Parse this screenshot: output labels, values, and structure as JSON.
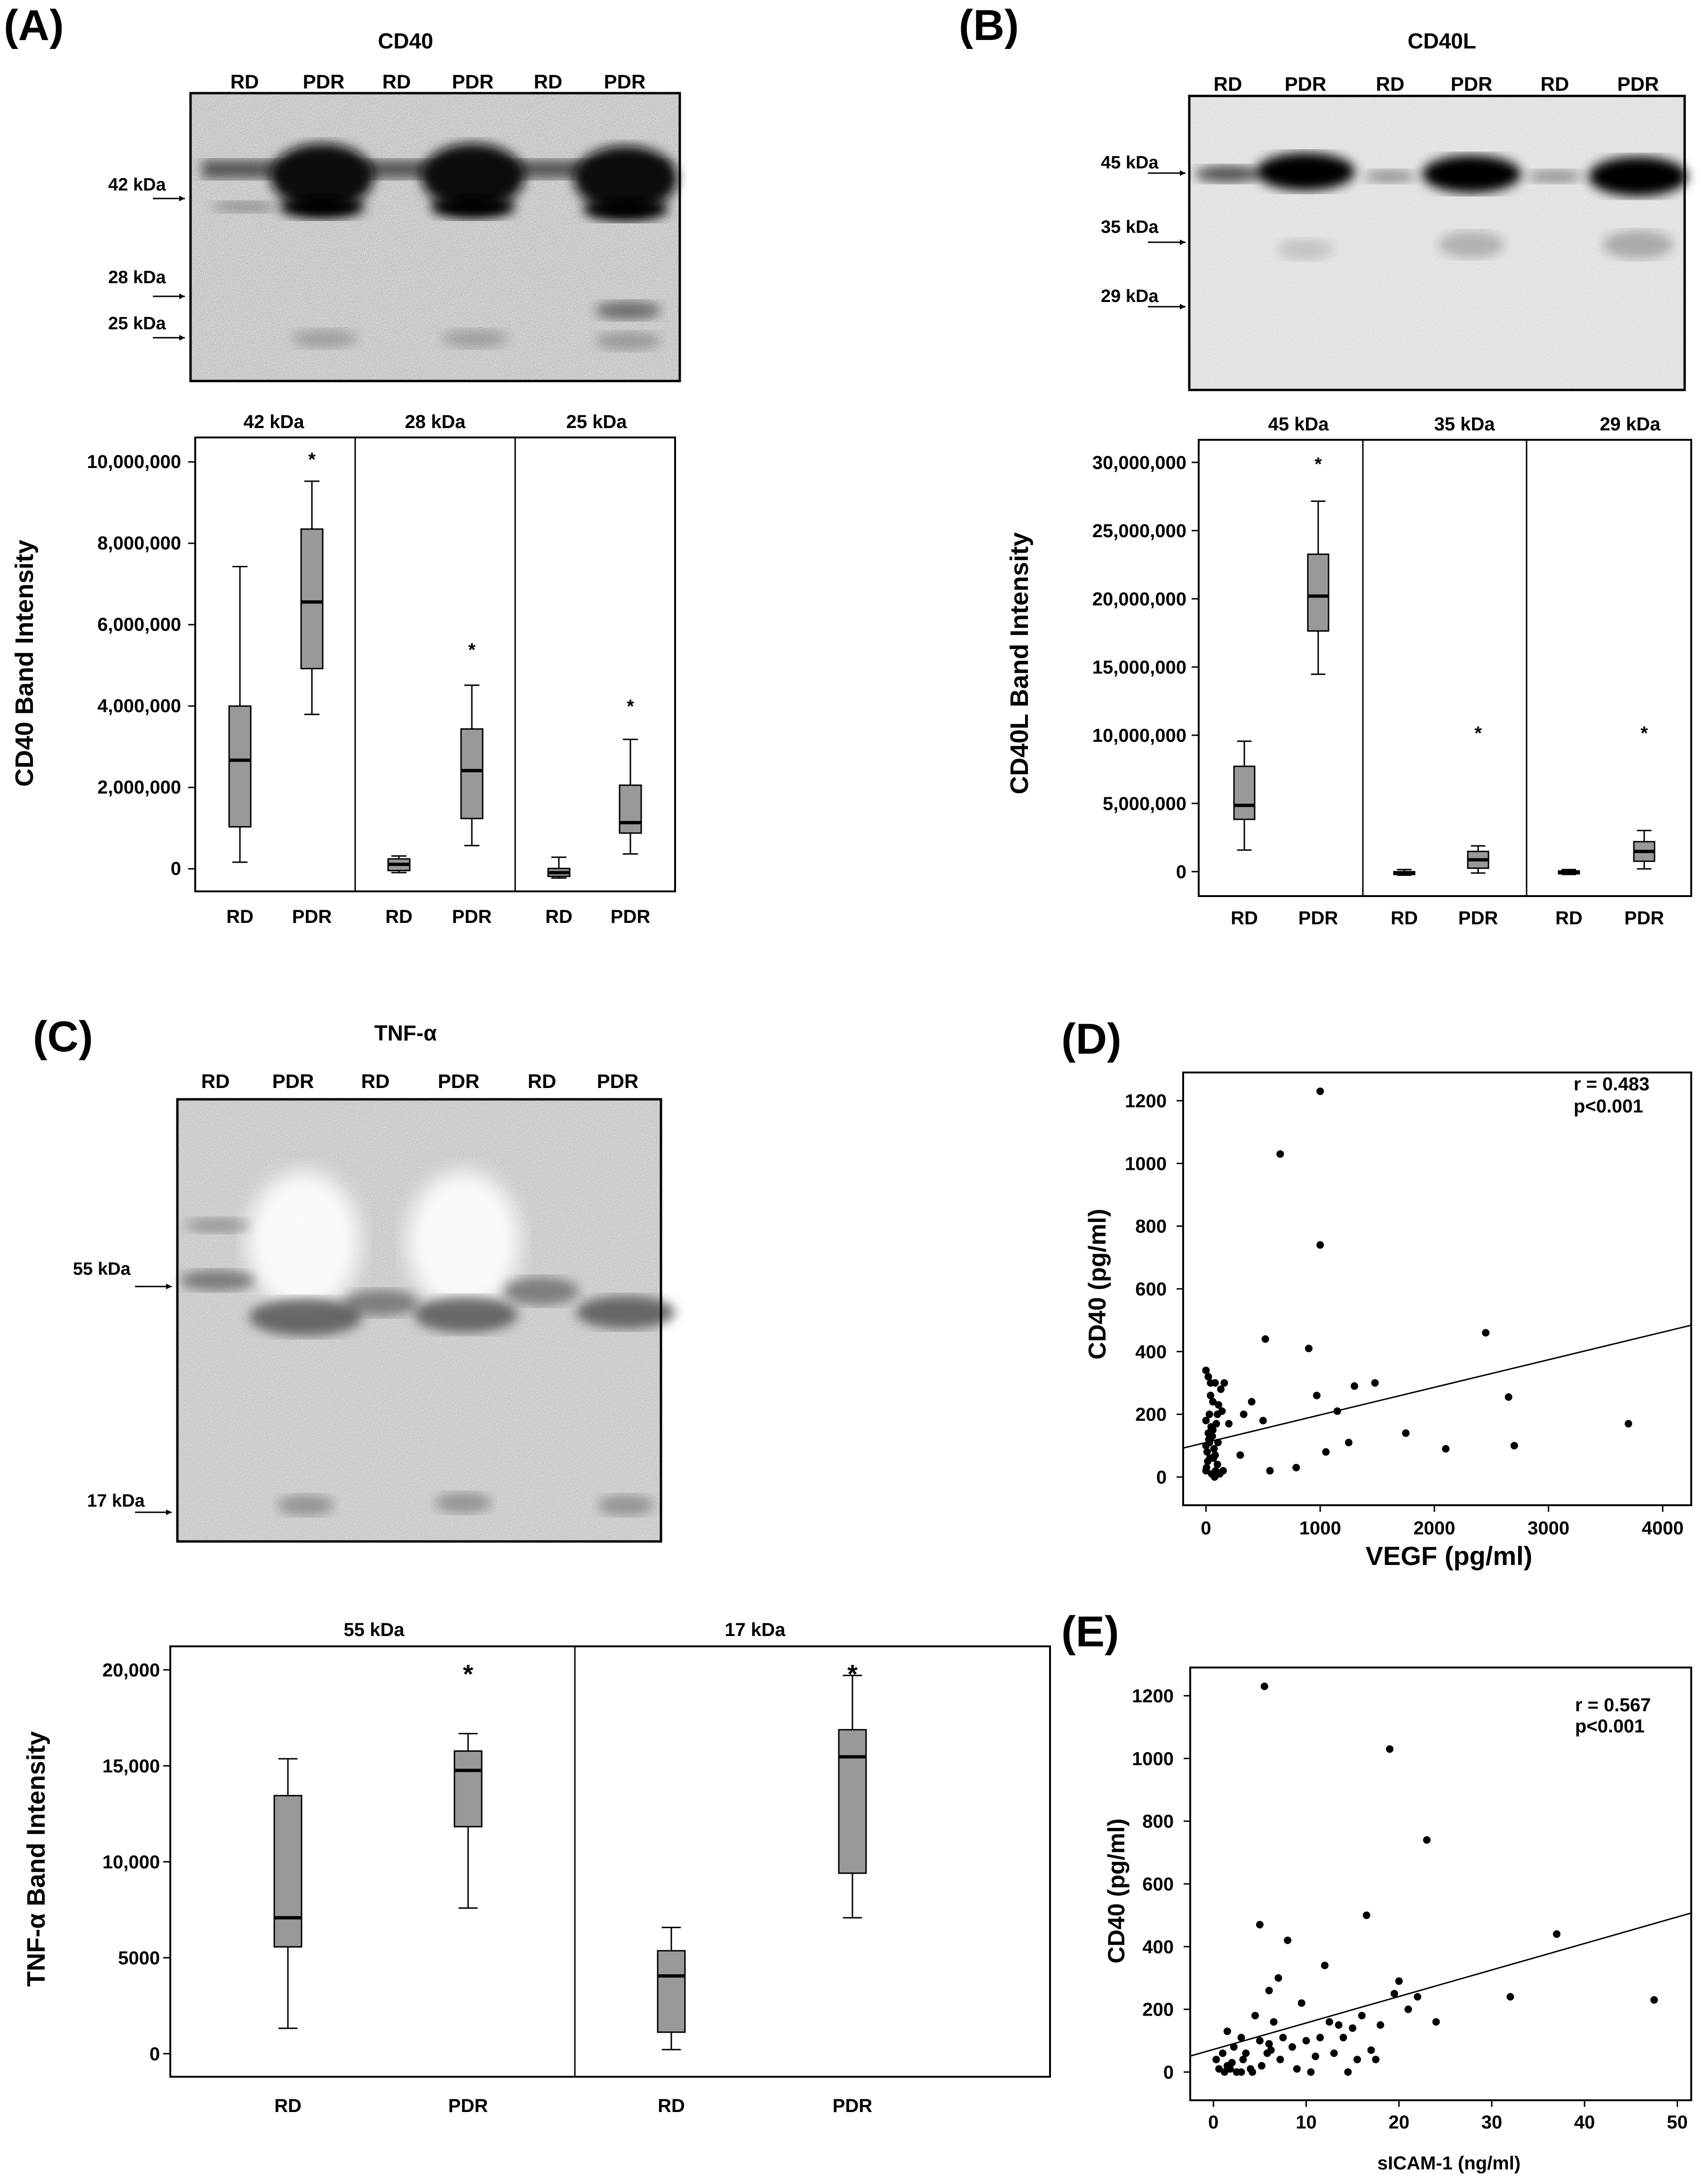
{
  "figure": {
    "panels": {
      "A": {
        "label": "(A)",
        "blot": {
          "title": "CD40",
          "lanes": [
            "RD",
            "PDR",
            "RD",
            "PDR",
            "RD",
            "PDR"
          ],
          "markers": [
            "42 kDa",
            "28 kDa",
            "25 kDa"
          ]
        },
        "plot": {
          "group_titles": [
            "42 kDa",
            "28 kDa",
            "25 kDa"
          ],
          "y_title": "CD40 Band Intensity",
          "y_ticks": [
            "0",
            "2,000,000",
            "4,000,000",
            "6,000,000",
            "8,000,000",
            "10,000,000"
          ],
          "x_labels": [
            "RD",
            "PDR",
            "RD",
            "PDR",
            "RD",
            "PDR"
          ],
          "sig": [
            "*",
            "*",
            "*"
          ]
        }
      },
      "B": {
        "label": "(B)",
        "blot": {
          "title": "CD40L",
          "lanes": [
            "RD",
            "PDR",
            "RD",
            "PDR",
            "RD",
            "PDR"
          ],
          "markers": [
            "45 kDa",
            "35 kDa",
            "29 kDa"
          ]
        },
        "plot": {
          "group_titles": [
            "45 kDa",
            "35 kDa",
            "29 kDa"
          ],
          "y_title": "CD40L Band Intensity",
          "y_ticks": [
            "0",
            "5,000,000",
            "10,000,000",
            "15,000,000",
            "20,000,000",
            "25,000,000",
            "30,000,000"
          ],
          "x_labels": [
            "RD",
            "PDR",
            "RD",
            "PDR",
            "RD",
            "PDR"
          ],
          "sig": [
            "*",
            "*",
            "*"
          ]
        }
      },
      "C": {
        "label": "(C)",
        "blot": {
          "title": "TNF-α",
          "lanes": [
            "RD",
            "PDR",
            "RD",
            "PDR",
            "RD",
            "PDR"
          ],
          "markers": [
            "55 kDa",
            "17 kDa"
          ]
        },
        "plot": {
          "group_titles": [
            "55 kDa",
            "17 kDa"
          ],
          "y_title": "TNF-α Band Intensity",
          "y_ticks": [
            "0",
            "5000",
            "10,000",
            "15,000",
            "20,000"
          ],
          "x_labels": [
            "RD",
            "PDR",
            "RD",
            "PDR"
          ],
          "sig": [
            "*",
            "*"
          ]
        }
      },
      "D": {
        "label": "(D)",
        "stat_r": "r = 0.483",
        "stat_p": "p<0.001",
        "x_ticks": [
          "0",
          "1000",
          "2000",
          "3000",
          "4000"
        ],
        "y_ticks": [
          "0",
          "200",
          "400",
          "600",
          "800",
          "1000",
          "1200"
        ]
      },
      "E": {
        "label": "(E)",
        "stat_r": "r = 0.567",
        "stat_p": "p<0.001",
        "x_ticks": [
          "0",
          "10",
          "20",
          "30",
          "40",
          "50"
        ],
        "y_ticks": [
          "0",
          "200",
          "400",
          "600",
          "800",
          "1000",
          "1200"
        ]
      }
    }
  },
  "chart_data": [
    {
      "id": "A",
      "type": "box",
      "title": "CD40",
      "ylabel": "CD40 Band Intensity",
      "ylim": [
        -300000,
        10600000
      ],
      "groups": [
        "42 kDa",
        "28 kDa",
        "25 kDa"
      ],
      "series": [
        {
          "group": "42 kDa",
          "name": "RD",
          "min": 400000,
          "q1": 1250000,
          "median": 2850000,
          "q3": 4150000,
          "max": 7500000
        },
        {
          "group": "42 kDa",
          "name": "PDR",
          "min": 3950000,
          "q1": 5050000,
          "median": 6650000,
          "q3": 8400000,
          "max": 9550000,
          "sig": 10000000
        },
        {
          "group": "28 kDa",
          "name": "RD",
          "min": 150000,
          "q1": 200000,
          "median": 350000,
          "q3": 480000,
          "max": 550000
        },
        {
          "group": "28 kDa",
          "name": "PDR",
          "min": 800000,
          "q1": 1450000,
          "median": 2600000,
          "q3": 3600000,
          "max": 4650000,
          "sig": 5400000
        },
        {
          "group": "25 kDa",
          "name": "RD",
          "min": 20000,
          "q1": 60000,
          "median": 150000,
          "q3": 250000,
          "max": 520000
        },
        {
          "group": "25 kDa",
          "name": "PDR",
          "min": 600000,
          "q1": 1100000,
          "median": 1350000,
          "q3": 2250000,
          "max": 3350000,
          "sig": 3950000
        }
      ]
    },
    {
      "id": "B",
      "type": "box",
      "title": "CD40L",
      "ylabel": "CD40L Band Intensity",
      "ylim": [
        -1500000,
        31200000
      ],
      "groups": [
        "45 kDa",
        "35 kDa",
        "29 kDa"
      ],
      "series": [
        {
          "group": "45 kDa",
          "name": "RD",
          "min": 1800000,
          "q1": 4000000,
          "median": 5000000,
          "q3": 7800000,
          "max": 9600000
        },
        {
          "group": "45 kDa",
          "name": "PDR",
          "min": 14400000,
          "q1": 17500000,
          "median": 20000000,
          "q3": 23000000,
          "max": 26800000,
          "sig": 30000000
        },
        {
          "group": "35 kDa",
          "name": "RD",
          "min": 0,
          "q1": 50000,
          "median": 150000,
          "q3": 250000,
          "max": 400000
        },
        {
          "group": "35 kDa",
          "name": "PDR",
          "min": 150000,
          "q1": 500000,
          "median": 1100000,
          "q3": 1700000,
          "max": 2100000,
          "sig": 10300000
        },
        {
          "group": "29 kDa",
          "name": "RD",
          "min": 50000,
          "q1": 100000,
          "median": 200000,
          "q3": 300000,
          "max": 400000
        },
        {
          "group": "29 kDa",
          "name": "PDR",
          "min": 450000,
          "q1": 1000000,
          "median": 1700000,
          "q3": 2400000,
          "max": 3200000,
          "sig": 10300000
        }
      ]
    },
    {
      "id": "C",
      "type": "box",
      "title": "TNF-α",
      "ylabel": "TNF-α Band Intensity",
      "ylim": [
        -1200,
        21000
      ],
      "groups": [
        "55 kDa",
        "17 kDa"
      ],
      "series": [
        {
          "group": "55 kDa",
          "name": "RD",
          "min": 1300,
          "q1": 5500,
          "median": 7000,
          "q3": 13300,
          "max": 15200
        },
        {
          "group": "55 kDa",
          "name": "PDR",
          "min": 7500,
          "q1": 11700,
          "median": 14600,
          "q3": 15600,
          "max": 16500,
          "sig": 20000
        },
        {
          "group": "17 kDa",
          "name": "RD",
          "min": 200,
          "q1": 1100,
          "median": 4000,
          "q3": 5300,
          "max": 6500
        },
        {
          "group": "17 kDa",
          "name": "PDR",
          "min": 7000,
          "q1": 9300,
          "median": 15300,
          "q3": 16700,
          "max": 19500,
          "sig": 20000
        }
      ]
    },
    {
      "id": "D",
      "type": "scatter",
      "xlabel": "VEGF (pg/ml)",
      "ylabel": "CD40 (pg/ml)",
      "xlim": [
        -200,
        4250
      ],
      "ylim": [
        -90,
        1290
      ],
      "fit": {
        "intercept": 110,
        "slope": 0.088
      },
      "x": [
        0,
        10,
        20,
        30,
        40,
        60,
        80,
        100,
        120,
        0,
        15,
        25,
        35,
        50,
        70,
        90,
        110,
        130,
        150,
        0,
        20,
        40,
        60,
        80,
        100,
        5,
        30,
        55,
        75,
        0,
        45,
        65,
        85,
        105,
        140,
        160,
        200,
        300,
        330,
        400,
        500,
        520,
        560,
        650,
        790,
        900,
        970,
        1000,
        1000,
        1050,
        1150,
        1250,
        1300,
        1480,
        1750,
        2100,
        2450,
        2650,
        2700,
        3700
      ],
      "y": [
        20,
        80,
        140,
        200,
        260,
        240,
        300,
        40,
        10,
        100,
        50,
        120,
        60,
        10,
        90,
        170,
        230,
        280,
        20,
        340,
        320,
        300,
        150,
        70,
        200,
        30,
        110,
        130,
        0,
        180,
        160,
        60,
        20,
        110,
        210,
        300,
        170,
        70,
        200,
        240,
        180,
        440,
        20,
        1030,
        30,
        410,
        260,
        740,
        1230,
        80,
        210,
        110,
        290,
        300,
        140,
        90,
        460,
        255,
        100,
        170
      ]
    },
    {
      "id": "E",
      "type": "scatter",
      "xlabel": "sICAM-1 (ng/ml)",
      "ylabel": "CD40 (pg/ml)",
      "xlim": [
        -2.5,
        51.5
      ],
      "ylim": [
        -90,
        1290
      ],
      "fit": {
        "intercept": 72,
        "slope": 8.45
      },
      "x": [
        0.3,
        0.6,
        1,
        1.2,
        1.5,
        1.8,
        2,
        2.2,
        2.5,
        3,
        3.2,
        3.5,
        4,
        4.2,
        4.5,
        5,
        5,
        5.2,
        5.5,
        5.8,
        6,
        6.2,
        6.5,
        7,
        7.2,
        7.5,
        8,
        8.5,
        9,
        9.5,
        10,
        10.5,
        11,
        11.5,
        12,
        12.5,
        13,
        13.5,
        14,
        14.5,
        15,
        15.5,
        16,
        16.5,
        17,
        17.5,
        18,
        19,
        19.5,
        20,
        21,
        22,
        23,
        24,
        32,
        37,
        47.5,
        1.5,
        3,
        6
      ],
      "y": [
        40,
        10,
        60,
        0,
        20,
        10,
        30,
        80,
        0,
        110,
        40,
        60,
        10,
        0,
        180,
        100,
        470,
        20,
        1230,
        60,
        260,
        70,
        160,
        300,
        40,
        110,
        420,
        80,
        10,
        220,
        100,
        0,
        50,
        110,
        340,
        160,
        60,
        150,
        110,
        0,
        140,
        40,
        180,
        500,
        70,
        40,
        150,
        1030,
        250,
        290,
        200,
        240,
        740,
        160,
        240,
        440,
        230,
        130,
        0,
        90
      ]
    }
  ]
}
